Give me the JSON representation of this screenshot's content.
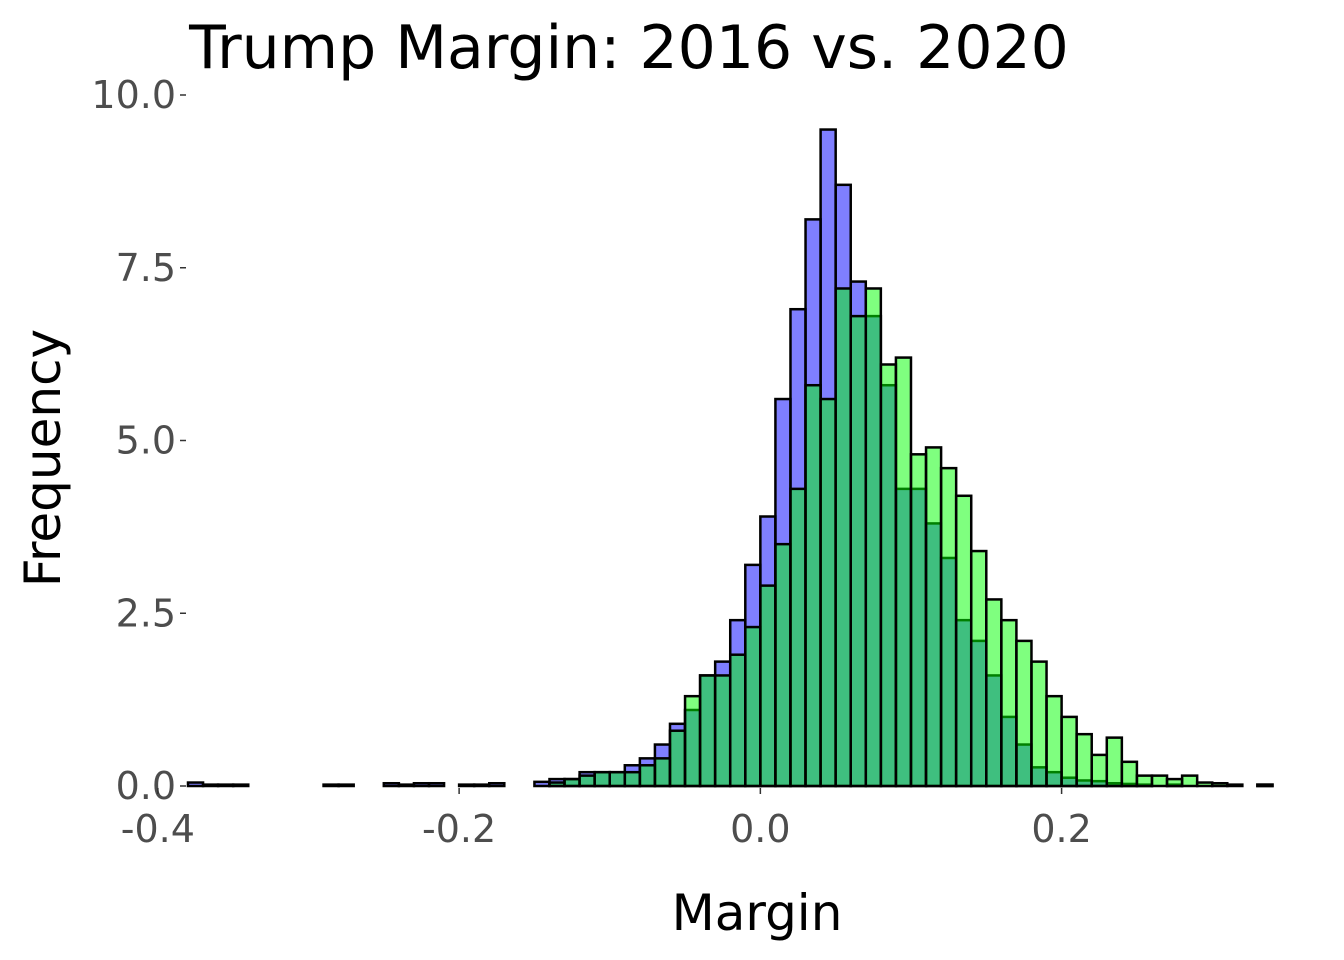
{
  "chart_data": {
    "type": "histogram",
    "title": "Trump Margin: 2016 vs. 2020",
    "xlabel": "Margin",
    "ylabel": "Frequency",
    "xlim": [
      -0.38,
      0.345
    ],
    "ylim": [
      0,
      10
    ],
    "x_ticks": [
      -0.4,
      -0.2,
      0.0,
      0.2
    ],
    "x_tick_labels": [
      "-0.4",
      "-0.2",
      "0.0",
      "0.2"
    ],
    "y_ticks": [
      0,
      2.5,
      5,
      7.5,
      10
    ],
    "y_tick_labels": [
      "0.0",
      "2.5",
      "5.0",
      "7.5",
      "10.0"
    ],
    "grid": false,
    "legend": "none",
    "bin_width": 0.01,
    "bin_start": -0.38,
    "series": [
      {
        "color": "#0000ff",
        "opacity": 0.5,
        "values": [
          0.05,
          0.02,
          0.02,
          0.02,
          0,
          0,
          0,
          0,
          0,
          0.02,
          0.02,
          0,
          0,
          0.04,
          0.02,
          0.04,
          0.04,
          0,
          0.02,
          0.02,
          0.04,
          0,
          0,
          0.06,
          0.1,
          0.1,
          0.2,
          0.2,
          0.2,
          0.3,
          0.4,
          0.6,
          0.9,
          1.1,
          1.6,
          1.8,
          2.4,
          3.2,
          3.9,
          5.6,
          6.9,
          8.2,
          9.5,
          8.7,
          7.3,
          6.8,
          5.8,
          4.3,
          4.3,
          3.8,
          3.3,
          2.4,
          2.1,
          1.6,
          1.0,
          0.6,
          0.27,
          0.2,
          0.12,
          0.08,
          0.07,
          0.04,
          0.03,
          0.02,
          0,
          0.02,
          0,
          0,
          0,
          0,
          0,
          0.02
        ]
      },
      {
        "color": "#00ff00",
        "opacity": 0.5,
        "values": [
          0,
          0,
          0,
          0,
          0,
          0,
          0,
          0,
          0,
          0,
          0,
          0,
          0,
          0,
          0,
          0,
          0,
          0,
          0,
          0,
          0,
          0,
          0,
          0,
          0.05,
          0.1,
          0.15,
          0.2,
          0.2,
          0.2,
          0.3,
          0.4,
          0.8,
          1.3,
          1.6,
          1.6,
          1.9,
          2.3,
          2.9,
          3.5,
          4.3,
          5.8,
          5.6,
          7.2,
          6.8,
          7.2,
          6.1,
          6.2,
          4.8,
          4.9,
          4.6,
          4.2,
          3.4,
          2.7,
          2.4,
          2.1,
          1.8,
          1.3,
          1.0,
          0.75,
          0.45,
          0.7,
          0.35,
          0.15,
          0.15,
          0.1,
          0.15,
          0.05,
          0.04,
          0.02,
          0,
          0.02
        ]
      }
    ]
  }
}
